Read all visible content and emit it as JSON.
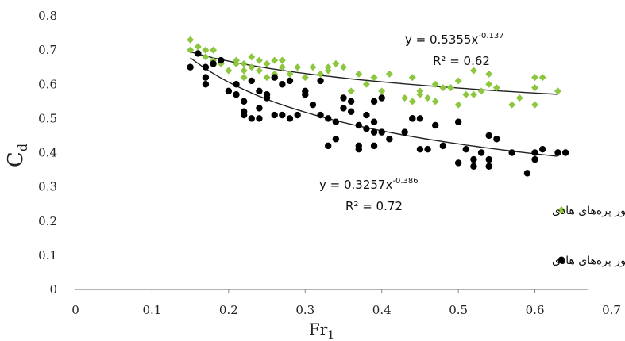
{
  "chart_data": {
    "type": "scatter",
    "xlabel": "Fr",
    "xlabel_sub": "1",
    "ylabel": "C",
    "ylabel_sub": "d",
    "xlim": [
      0,
      0.7
    ],
    "ylim": [
      0,
      0.8
    ],
    "xticks": [
      "0",
      "0.1",
      "0.2",
      "0.3",
      "0.4",
      "0.5",
      "0.6",
      "0.7"
    ],
    "yticks": [
      "0",
      "0.1",
      "0.2",
      "0.3",
      "0.4",
      "0.5",
      "0.6",
      "0.7",
      "0.8"
    ],
    "grid": false,
    "legend_position": "right",
    "series": [
      {
        "name": "با حضور پره‌های هادی",
        "marker": "diamond",
        "color": "#8dc63f",
        "trendline": {
          "a": 0.5355,
          "b": -0.137,
          "equation": "y = 0.5355x",
          "exponent": "-0.137",
          "r2": "R² = 0.62"
        },
        "points": [
          [
            0.15,
            0.73
          ],
          [
            0.15,
            0.7
          ],
          [
            0.16,
            0.71
          ],
          [
            0.16,
            0.69
          ],
          [
            0.17,
            0.7
          ],
          [
            0.17,
            0.68
          ],
          [
            0.18,
            0.7
          ],
          [
            0.18,
            0.67
          ],
          [
            0.19,
            0.66
          ],
          [
            0.2,
            0.64
          ],
          [
            0.21,
            0.67
          ],
          [
            0.21,
            0.66
          ],
          [
            0.22,
            0.66
          ],
          [
            0.22,
            0.64
          ],
          [
            0.22,
            0.62
          ],
          [
            0.23,
            0.68
          ],
          [
            0.23,
            0.65
          ],
          [
            0.24,
            0.67
          ],
          [
            0.24,
            0.64
          ],
          [
            0.25,
            0.66
          ],
          [
            0.25,
            0.62
          ],
          [
            0.26,
            0.67
          ],
          [
            0.26,
            0.63
          ],
          [
            0.27,
            0.67
          ],
          [
            0.27,
            0.65
          ],
          [
            0.28,
            0.63
          ],
          [
            0.29,
            0.65
          ],
          [
            0.3,
            0.62
          ],
          [
            0.31,
            0.65
          ],
          [
            0.32,
            0.63
          ],
          [
            0.33,
            0.64
          ],
          [
            0.33,
            0.65
          ],
          [
            0.34,
            0.66
          ],
          [
            0.35,
            0.65
          ],
          [
            0.36,
            0.58
          ],
          [
            0.37,
            0.63
          ],
          [
            0.38,
            0.6
          ],
          [
            0.39,
            0.62
          ],
          [
            0.4,
            0.58
          ],
          [
            0.41,
            0.63
          ],
          [
            0.43,
            0.56
          ],
          [
            0.44,
            0.55
          ],
          [
            0.44,
            0.62
          ],
          [
            0.45,
            0.57
          ],
          [
            0.46,
            0.56
          ],
          [
            0.47,
            0.6
          ],
          [
            0.48,
            0.59
          ],
          [
            0.5,
            0.61
          ],
          [
            0.5,
            0.54
          ],
          [
            0.51,
            0.57
          ],
          [
            0.52,
            0.64
          ],
          [
            0.52,
            0.57
          ],
          [
            0.53,
            0.58
          ],
          [
            0.54,
            0.6
          ],
          [
            0.54,
            0.63
          ],
          [
            0.55,
            0.59
          ],
          [
            0.57,
            0.54
          ],
          [
            0.58,
            0.56
          ],
          [
            0.6,
            0.59
          ],
          [
            0.6,
            0.62
          ],
          [
            0.61,
            0.62
          ],
          [
            0.6,
            0.54
          ],
          [
            0.63,
            0.58
          ],
          [
            0.47,
            0.55
          ],
          [
            0.49,
            0.59
          ],
          [
            0.45,
            0.58
          ]
        ]
      },
      {
        "name": "بدون حضور پره‌های هادی",
        "marker": "circle",
        "color": "#000000",
        "trendline": {
          "a": 0.3257,
          "b": -0.386,
          "equation": "y = 0.3257x",
          "exponent": "-0.386",
          "r2": "R² = 0.72"
        },
        "points": [
          [
            0.15,
            0.65
          ],
          [
            0.16,
            0.69
          ],
          [
            0.17,
            0.65
          ],
          [
            0.17,
            0.62
          ],
          [
            0.17,
            0.6
          ],
          [
            0.18,
            0.66
          ],
          [
            0.19,
            0.67
          ],
          [
            0.21,
            0.6
          ],
          [
            0.21,
            0.57
          ],
          [
            0.22,
            0.55
          ],
          [
            0.22,
            0.52
          ],
          [
            0.22,
            0.51
          ],
          [
            0.23,
            0.61
          ],
          [
            0.23,
            0.5
          ],
          [
            0.24,
            0.58
          ],
          [
            0.24,
            0.53
          ],
          [
            0.24,
            0.5
          ],
          [
            0.25,
            0.57
          ],
          [
            0.25,
            0.56
          ],
          [
            0.26,
            0.62
          ],
          [
            0.26,
            0.51
          ],
          [
            0.27,
            0.6
          ],
          [
            0.27,
            0.51
          ],
          [
            0.28,
            0.61
          ],
          [
            0.28,
            0.5
          ],
          [
            0.29,
            0.51
          ],
          [
            0.3,
            0.58
          ],
          [
            0.3,
            0.57
          ],
          [
            0.31,
            0.54
          ],
          [
            0.32,
            0.61
          ],
          [
            0.32,
            0.51
          ],
          [
            0.33,
            0.5
          ],
          [
            0.33,
            0.42
          ],
          [
            0.34,
            0.44
          ],
          [
            0.34,
            0.49
          ],
          [
            0.35,
            0.56
          ],
          [
            0.35,
            0.53
          ],
          [
            0.36,
            0.55
          ],
          [
            0.36,
            0.52
          ],
          [
            0.37,
            0.48
          ],
          [
            0.37,
            0.42
          ],
          [
            0.37,
            0.41
          ],
          [
            0.38,
            0.51
          ],
          [
            0.38,
            0.47
          ],
          [
            0.39,
            0.55
          ],
          [
            0.39,
            0.49
          ],
          [
            0.39,
            0.46
          ],
          [
            0.39,
            0.42
          ],
          [
            0.4,
            0.56
          ],
          [
            0.4,
            0.46
          ],
          [
            0.41,
            0.44
          ],
          [
            0.43,
            0.46
          ],
          [
            0.44,
            0.5
          ],
          [
            0.45,
            0.5
          ],
          [
            0.45,
            0.41
          ],
          [
            0.46,
            0.41
          ],
          [
            0.47,
            0.48
          ],
          [
            0.48,
            0.42
          ],
          [
            0.5,
            0.49
          ],
          [
            0.5,
            0.37
          ],
          [
            0.51,
            0.41
          ],
          [
            0.52,
            0.38
          ],
          [
            0.52,
            0.36
          ],
          [
            0.53,
            0.4
          ],
          [
            0.54,
            0.45
          ],
          [
            0.54,
            0.38
          ],
          [
            0.55,
            0.44
          ],
          [
            0.54,
            0.36
          ],
          [
            0.57,
            0.4
          ],
          [
            0.59,
            0.34
          ],
          [
            0.6,
            0.38
          ],
          [
            0.6,
            0.4
          ],
          [
            0.61,
            0.41
          ],
          [
            0.63,
            0.4
          ],
          [
            0.64,
            0.4
          ],
          [
            0.2,
            0.58
          ],
          [
            0.44,
            0.5
          ]
        ]
      }
    ]
  }
}
